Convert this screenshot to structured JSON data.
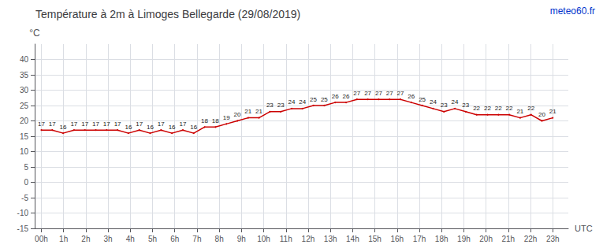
{
  "chart_data": {
    "type": "line",
    "title": "Température à 2m à Limoges Bellegarde (29/08/2019)",
    "ylabel": "°C",
    "xlabel": "UTC",
    "annotations": [
      {
        "text": "meteo60.fr",
        "color": "#0033cc"
      }
    ],
    "x": [
      0,
      0.489362,
      0.978723,
      1.468085,
      1.957447,
      2.446809,
      2.93617,
      3.425532,
      3.914894,
      4.404255,
      4.893617,
      5.382979,
      5.87234,
      6.361702,
      6.851064,
      7.340426,
      7.829787,
      8.319149,
      8.808511,
      9.297872,
      9.787234,
      10.276596,
      10.765957,
      11.255319,
      11.744681,
      12.234043,
      12.723404,
      13.212766,
      13.702128,
      14.191489,
      14.680851,
      15.170213,
      15.659574,
      16.148936,
      16.638298,
      17.12766,
      17.617021,
      18.106383,
      18.595745,
      19.085106,
      19.574468,
      20.06383,
      20.553191,
      21.042553,
      21.531915,
      22.021277,
      22.510638,
      23
    ],
    "values": [
      17,
      17,
      16,
      17,
      17,
      17,
      17,
      17,
      16,
      17,
      16,
      17,
      16,
      17,
      16,
      18,
      18,
      19,
      20,
      21,
      21,
      23,
      23,
      24,
      24,
      25,
      25,
      26,
      26,
      27,
      27,
      27,
      27,
      27,
      26,
      25,
      24,
      23,
      24,
      23,
      22,
      22,
      22,
      22,
      21,
      22,
      20,
      21
    ],
    "color": "#cc0000",
    "data_labels": true,
    "grid": true,
    "xlim": [
      -0.3,
      23.7
    ],
    "xticks": [
      {
        "value": 0,
        "label": "00h"
      },
      {
        "value": 1,
        "label": "1h"
      },
      {
        "value": 2,
        "label": "2h"
      },
      {
        "value": 3,
        "label": "3h"
      },
      {
        "value": 4,
        "label": "4h"
      },
      {
        "value": 5,
        "label": "5h"
      },
      {
        "value": 6,
        "label": "6h"
      },
      {
        "value": 7,
        "label": "7h"
      },
      {
        "value": 8,
        "label": "8h"
      },
      {
        "value": 9,
        "label": "9h"
      },
      {
        "value": 10,
        "label": "10h"
      },
      {
        "value": 11,
        "label": "11h"
      },
      {
        "value": 12,
        "label": "12h"
      },
      {
        "value": 13,
        "label": "13h"
      },
      {
        "value": 14,
        "label": "14h"
      },
      {
        "value": 15,
        "label": "15h"
      },
      {
        "value": 16,
        "label": "16h"
      },
      {
        "value": 17,
        "label": "17h"
      },
      {
        "value": 18,
        "label": "18h"
      },
      {
        "value": 19,
        "label": "19h"
      },
      {
        "value": 20,
        "label": "20h"
      },
      {
        "value": 21,
        "label": "21h"
      },
      {
        "value": 22,
        "label": "22h"
      },
      {
        "value": 23,
        "label": "23h"
      }
    ],
    "ylim": [
      -15,
      45
    ],
    "yticks": [
      -15,
      -10,
      -5,
      0,
      5,
      10,
      15,
      20,
      25,
      30,
      35,
      40
    ]
  }
}
